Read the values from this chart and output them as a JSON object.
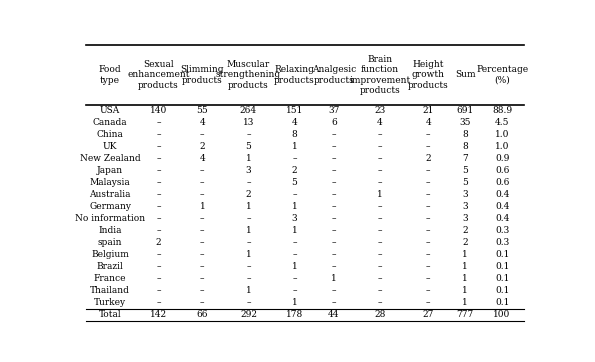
{
  "col_headers": [
    "Food\ntype",
    "Sexual\nenhancement\nproducts",
    "Slimming\nproducts",
    "Muscular\nstrengthening\nproducts",
    "Relaxing\nproducts",
    "Analgesic\nproducts",
    "Brain\nfunction\nimprovement\nproducts",
    "Height\ngrowth\nproducts",
    "Sum",
    "Percentage\n(%)"
  ],
  "rows": [
    [
      "USA",
      "140",
      "55",
      "264",
      "151",
      "37",
      "23",
      "21",
      "691",
      "88.9"
    ],
    [
      "Canada",
      "–",
      "4",
      "13",
      "4",
      "6",
      "4",
      "4",
      "35",
      "4.5"
    ],
    [
      "China",
      "–",
      "–",
      "–",
      "8",
      "–",
      "–",
      "–",
      "8",
      "1.0"
    ],
    [
      "UK",
      "–",
      "2",
      "5",
      "1",
      "–",
      "–",
      "–",
      "8",
      "1.0"
    ],
    [
      "New Zealand",
      "–",
      "4",
      "1",
      "–",
      "–",
      "–",
      "2",
      "7",
      "0.9"
    ],
    [
      "Japan",
      "–",
      "–",
      "3",
      "2",
      "–",
      "–",
      "–",
      "5",
      "0.6"
    ],
    [
      "Malaysia",
      "–",
      "–",
      "–",
      "5",
      "–",
      "–",
      "–",
      "5",
      "0.6"
    ],
    [
      "Australia",
      "–",
      "–",
      "2",
      "–",
      "–",
      "1",
      "–",
      "3",
      "0.4"
    ],
    [
      "Germany",
      "–",
      "1",
      "1",
      "1",
      "–",
      "–",
      "–",
      "3",
      "0.4"
    ],
    [
      "No information",
      "–",
      "–",
      "–",
      "3",
      "–",
      "–",
      "–",
      "3",
      "0.4"
    ],
    [
      "India",
      "–",
      "–",
      "1",
      "1",
      "–",
      "–",
      "–",
      "2",
      "0.3"
    ],
    [
      "spain",
      "2",
      "–",
      "–",
      "–",
      "–",
      "–",
      "–",
      "2",
      "0.3"
    ],
    [
      "Belgium",
      "–",
      "–",
      "1",
      "–",
      "–",
      "–",
      "–",
      "1",
      "0.1"
    ],
    [
      "Brazil",
      "–",
      "–",
      "–",
      "1",
      "–",
      "–",
      "–",
      "1",
      "0.1"
    ],
    [
      "France",
      "–",
      "–",
      "–",
      "–",
      "1",
      "–",
      "–",
      "1",
      "0.1"
    ],
    [
      "Thailand",
      "–",
      "–",
      "1",
      "–",
      "–",
      "–",
      "–",
      "1",
      "0.1"
    ],
    [
      "Turkey",
      "–",
      "–",
      "–",
      "1",
      "–",
      "–",
      "–",
      "1",
      "0.1"
    ]
  ],
  "total_row": [
    "Total",
    "142",
    "66",
    "292",
    "178",
    "44",
    "28",
    "27",
    "777",
    "100"
  ],
  "header_bg": "#d8d8d8",
  "body_bg": "#ffffff",
  "font_size": 6.5,
  "header_font_size": 6.5
}
